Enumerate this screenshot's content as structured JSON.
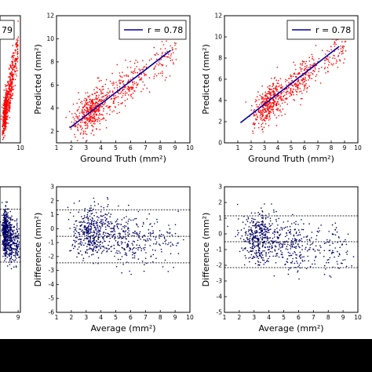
{
  "colors": {
    "scatter": "#ff0000",
    "bland": "#000066",
    "fit_line": "#0000aa",
    "limit_line": "#333333"
  },
  "chart_data": [
    {
      "id": "scatter-left",
      "type": "scatter",
      "title": "",
      "xlabel": "",
      "ylabel": "",
      "xlim": [
        1,
        10
      ],
      "ylim": [
        1,
        12
      ],
      "xticks": [
        10
      ],
      "yticks": [],
      "legend": {
        "label_visible": "79",
        "position": "top-right"
      },
      "grid": false
    },
    {
      "id": "scatter-middle",
      "type": "scatter",
      "xlabel": "Ground Truth (mm²)",
      "ylabel": "Predicted (mm²)",
      "xlim": [
        1,
        10
      ],
      "ylim": [
        1,
        12
      ],
      "xticks": [
        1,
        2,
        3,
        4,
        5,
        6,
        7,
        8,
        9,
        10
      ],
      "yticks": [
        2,
        4,
        6,
        8,
        10,
        12
      ],
      "legend": {
        "label": "r = 0.78",
        "position": "top-right"
      },
      "fit_line": {
        "x": [
          1.9,
          8.7
        ],
        "y": [
          2.3,
          9.0
        ]
      },
      "point_count": 700,
      "grid": false
    },
    {
      "id": "scatter-right",
      "type": "scatter",
      "xlabel": "Ground Truth (mm²)",
      "ylabel": "Predicted (mm²)",
      "xlim": [
        0,
        10
      ],
      "ylim": [
        0,
        12
      ],
      "xticks": [
        1,
        2,
        3,
        4,
        5,
        6,
        7,
        8,
        9,
        10
      ],
      "yticks": [
        0,
        2,
        4,
        6,
        8,
        10,
        12
      ],
      "legend": {
        "label": "r = 0.78",
        "position": "top-right"
      },
      "fit_line": {
        "x": [
          1.2,
          8.6
        ],
        "y": [
          1.9,
          9.1
        ]
      },
      "point_count": 700,
      "grid": false
    },
    {
      "id": "bland-left",
      "type": "scatter",
      "xlim": [
        1,
        10
      ],
      "ylim": [
        -6,
        3
      ],
      "xticks": [
        9
      ],
      "yticks": [],
      "limit_lines": [
        1.4,
        -0.5,
        -2.4
      ],
      "grid": false
    },
    {
      "id": "bland-middle",
      "type": "scatter",
      "xlabel": "Average (mm²)",
      "ylabel": "Difference (mm²)",
      "xlim": [
        1,
        10
      ],
      "ylim": [
        -6,
        3
      ],
      "xticks": [
        1,
        2,
        3,
        4,
        5,
        6,
        7,
        8,
        9,
        10
      ],
      "yticks": [
        3,
        2,
        1,
        0,
        -1,
        -2,
        -3,
        -4,
        -5,
        -6
      ],
      "limit_lines": [
        1.35,
        -0.55,
        -2.45
      ],
      "point_count": 700,
      "grid": false
    },
    {
      "id": "bland-right",
      "type": "scatter",
      "xlabel": "Average (mm²)",
      "ylabel": "Difference (mm²)",
      "xlim": [
        1,
        10
      ],
      "ylim": [
        -5,
        3
      ],
      "xticks": [
        1,
        2,
        3,
        4,
        5,
        6,
        7,
        8,
        9,
        10
      ],
      "yticks": [
        3,
        2,
        1,
        0,
        -1,
        -2,
        -3,
        -4,
        -5
      ],
      "limit_lines": [
        1.15,
        -0.5,
        -2.15
      ],
      "point_count": 700,
      "grid": false
    }
  ]
}
